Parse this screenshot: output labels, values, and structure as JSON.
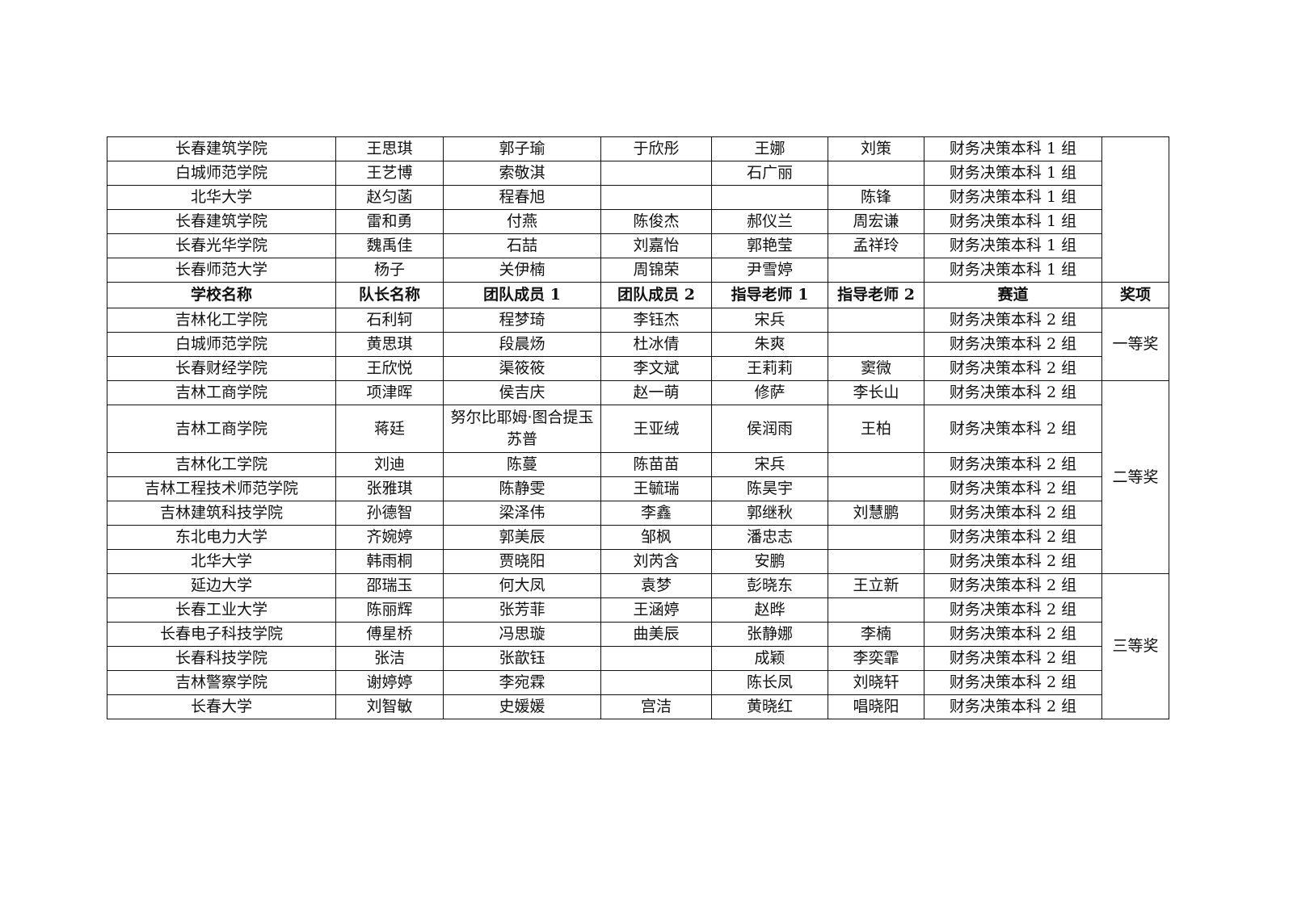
{
  "header": [
    "学校名称",
    "队长名称",
    "团队成员 1",
    "团队成员 2",
    "指导老师 1",
    "指导老师 2",
    "赛道",
    "奖项"
  ],
  "top_rows": [
    [
      "长春建筑学院",
      "王思琪",
      "郭子瑜",
      "于欣彤",
      "王娜",
      "刘策",
      "财务决策本科 1 组"
    ],
    [
      "白城师范学院",
      "王艺博",
      "索敬淇",
      "",
      "石广丽",
      "",
      "财务决策本科 1 组"
    ],
    [
      "北华大学",
      "赵匀菡",
      "程春旭",
      "",
      "",
      "陈锋",
      "财务决策本科 1 组"
    ],
    [
      "长春建筑学院",
      "雷和勇",
      "付燕",
      "陈俊杰",
      "郝仪兰",
      "周宏谦",
      "财务决策本科 1 组"
    ],
    [
      "长春光华学院",
      "魏禹佳",
      "石喆",
      "刘嘉怡",
      "郭艳莹",
      "孟祥玲",
      "财务决策本科 1 组"
    ],
    [
      "长春师范大学",
      "杨子",
      "关伊楠",
      "周锦荣",
      "尹雪婷",
      "",
      "财务决策本科 1 组"
    ]
  ],
  "award_groups": [
    {
      "award": "一等奖",
      "rows": [
        [
          "吉林化工学院",
          "石利轲",
          "程梦琦",
          "李钰杰",
          "宋兵",
          "",
          "财务决策本科 2 组"
        ],
        [
          "白城师范学院",
          "黄思琪",
          "段晨炀",
          "杜冰倩",
          "朱爽",
          "",
          "财务决策本科 2 组"
        ],
        [
          "长春财经学院",
          "王欣悦",
          "渠筱筱",
          "李文斌",
          "王莉莉",
          "窦微",
          "财务决策本科 2 组"
        ]
      ]
    },
    {
      "award": "二等奖",
      "rows": [
        [
          "吉林工商学院",
          "项津晖",
          "侯吉庆",
          "赵一萌",
          "修萨",
          "李长山",
          "财务决策本科 2 组"
        ],
        [
          "吉林工商学院",
          "蒋廷",
          "努尔比耶姆·图合提玉苏普",
          "王亚绒",
          "侯润雨",
          "王柏",
          "财务决策本科 2 组"
        ],
        [
          "吉林化工学院",
          "刘迪",
          "陈蔓",
          "陈苗苗",
          "宋兵",
          "",
          "财务决策本科 2 组"
        ],
        [
          "吉林工程技术师范学院",
          "张雅琪",
          "陈静雯",
          "王毓瑞",
          "陈昊宇",
          "",
          "财务决策本科 2 组"
        ],
        [
          "吉林建筑科技学院",
          "孙德智",
          "梁泽伟",
          "李鑫",
          "郭继秋",
          "刘慧鹏",
          "财务决策本科 2 组"
        ],
        [
          "东北电力大学",
          "齐婉婷",
          "郭美辰",
          "邹枫",
          "潘忠志",
          "",
          "财务决策本科 2 组"
        ],
        [
          "北华大学",
          "韩雨桐",
          "贾晓阳",
          "刘芮含",
          "安鹏",
          "",
          "财务决策本科 2 组"
        ]
      ]
    },
    {
      "award": "三等奖",
      "rows": [
        [
          "延边大学",
          "邵瑞玉",
          "何大凤",
          "袁梦",
          "彭晓东",
          "王立新",
          "财务决策本科 2 组"
        ],
        [
          "长春工业大学",
          "陈丽辉",
          "张芳菲",
          "王涵婷",
          "赵晔",
          "",
          "财务决策本科 2 组"
        ],
        [
          "长春电子科技学院",
          "傅星桥",
          "冯思璇",
          "曲美辰",
          "张静娜",
          "李楠",
          "财务决策本科 2 组"
        ],
        [
          "长春科技学院",
          "张洁",
          "张歆钰",
          "",
          "成颖",
          "李奕霏",
          "财务决策本科 2 组"
        ],
        [
          "吉林警察学院",
          "谢婷婷",
          "李宛霖",
          "",
          "陈长凤",
          "刘晓轩",
          "财务决策本科 2 组"
        ],
        [
          "长春大学",
          "刘智敏",
          "史媛媛",
          "宫洁",
          "黄晓红",
          "唱晓阳",
          "财务决策本科 2 组"
        ]
      ]
    }
  ]
}
